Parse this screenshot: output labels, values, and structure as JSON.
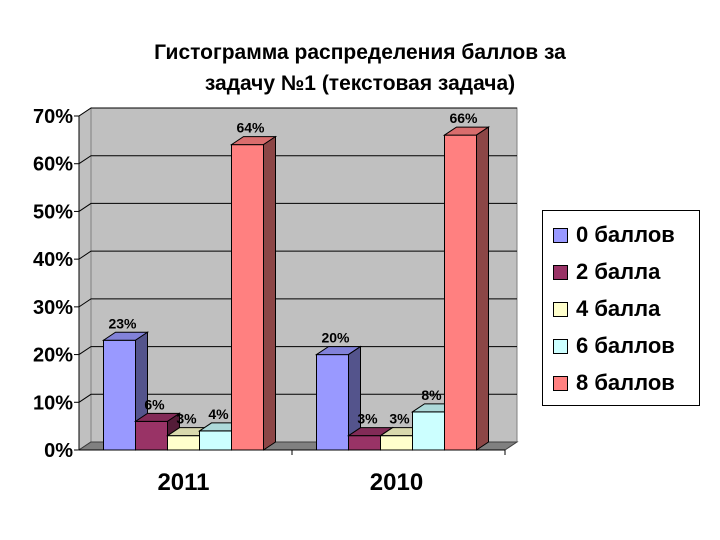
{
  "chart_data": {
    "type": "bar",
    "title_lines": [
      "Гистограмма распределения баллов за",
      "задачу №1 (текстовая задача)"
    ],
    "categories": [
      "2011",
      "2010"
    ],
    "series": [
      {
        "name": "0 баллов",
        "color": "#9999ff",
        "values": [
          23,
          20
        ],
        "labels": [
          "23%",
          "20%"
        ]
      },
      {
        "name": "2 балла",
        "color": "#993366",
        "values": [
          6,
          3
        ],
        "labels": [
          "6%",
          "3%"
        ]
      },
      {
        "name": "4 балла",
        "color": "#ffffcc",
        "values": [
          3,
          3
        ],
        "labels": [
          "3%",
          "3%"
        ]
      },
      {
        "name": "6 баллов",
        "color": "#ccffff",
        "values": [
          4,
          8
        ],
        "labels": [
          "4%",
          "8%"
        ]
      },
      {
        "name": "8 баллов",
        "color": "#ff8080",
        "values": [
          64,
          66
        ],
        "labels": [
          "64%",
          "66%"
        ]
      }
    ],
    "ylim": [
      0,
      70
    ],
    "yticks": [
      "0%",
      "10%",
      "20%",
      "30%",
      "40%",
      "50%",
      "60%",
      "70%"
    ],
    "grid": true,
    "legend_position": "right"
  }
}
